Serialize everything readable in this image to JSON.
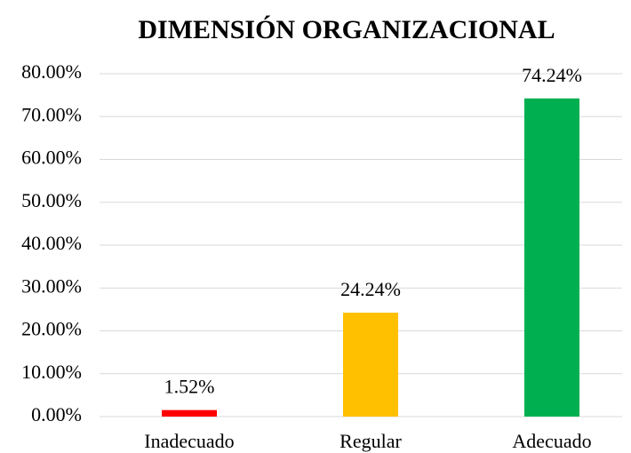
{
  "chart_data": {
    "type": "bar",
    "title": "DIMENSIÓN ORGANIZACIONAL",
    "categories": [
      "Inadecuado",
      "Regular",
      "Adecuado"
    ],
    "values": [
      1.52,
      24.24,
      74.24
    ],
    "value_labels": [
      "1.52%",
      "24.24%",
      "74.24%"
    ],
    "colors": [
      "#ff0000",
      "#ffc000",
      "#00b050"
    ],
    "ylim": [
      0,
      80
    ],
    "yticks": [
      {
        "value": 0,
        "label": "0.00%"
      },
      {
        "value": 10,
        "label": "10.00%"
      },
      {
        "value": 20,
        "label": "20.00%"
      },
      {
        "value": 30,
        "label": "30.00%"
      },
      {
        "value": 40,
        "label": "40.00%"
      },
      {
        "value": 50,
        "label": "50.00%"
      },
      {
        "value": 60,
        "label": "60.00%"
      },
      {
        "value": 70,
        "label": "70.00%"
      },
      {
        "value": 80,
        "label": "80.00%"
      }
    ],
    "grid": true
  }
}
